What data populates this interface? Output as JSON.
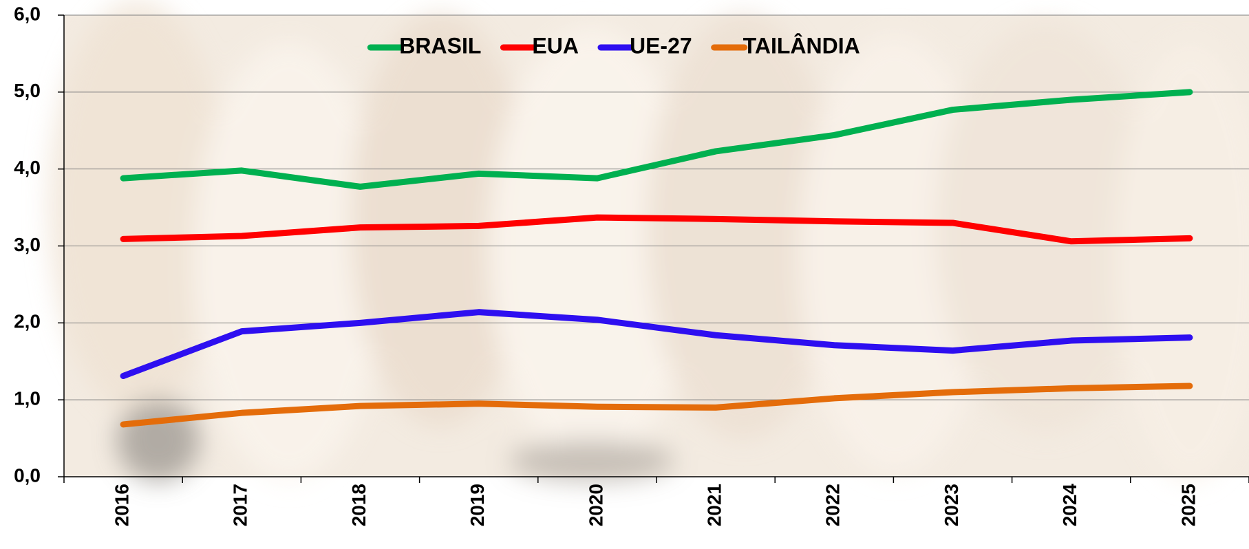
{
  "chart_data": {
    "type": "line",
    "categories": [
      "2016",
      "2017",
      "2018",
      "2019",
      "2020",
      "2021",
      "2022",
      "2023",
      "2024",
      "2025"
    ],
    "series": [
      {
        "name": "BRASIL",
        "color": "#00b050",
        "values": [
          3.88,
          3.98,
          3.77,
          3.94,
          3.88,
          4.23,
          4.44,
          4.77,
          4.9,
          5.0
        ]
      },
      {
        "name": "EUA",
        "color": "#ff0000",
        "values": [
          3.09,
          3.13,
          3.24,
          3.26,
          3.37,
          3.35,
          3.32,
          3.3,
          3.06,
          3.1
        ]
      },
      {
        "name": "UE-27",
        "color": "#2e0ff0",
        "values": [
          1.31,
          1.89,
          2.0,
          2.14,
          2.04,
          1.84,
          1.71,
          1.64,
          1.77,
          1.81
        ]
      },
      {
        "name": "TAILÂNDIA",
        "color": "#e46c0a",
        "values": [
          0.68,
          0.83,
          0.92,
          0.95,
          0.91,
          0.9,
          1.02,
          1.1,
          1.15,
          1.18
        ]
      }
    ],
    "ylim": [
      0,
      6
    ],
    "yticks": [
      {
        "value": 0,
        "label": "0,0"
      },
      {
        "value": 1,
        "label": "1,0"
      },
      {
        "value": 2,
        "label": "2,0"
      },
      {
        "value": 3,
        "label": "3,0"
      },
      {
        "value": 4,
        "label": "4,0"
      },
      {
        "value": 5,
        "label": "5,0"
      },
      {
        "value": 6,
        "label": "6,0"
      }
    ],
    "grid": true,
    "legend": "top"
  }
}
